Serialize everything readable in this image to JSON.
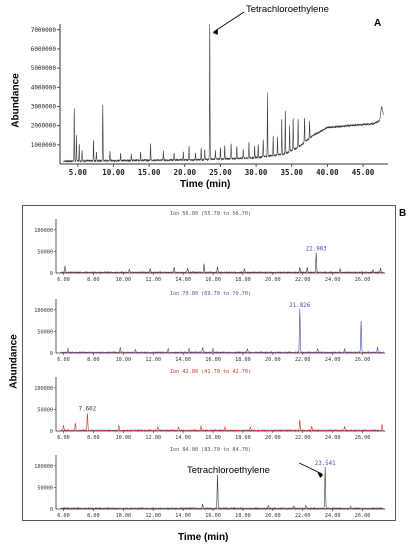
{
  "colors": {
    "axis": "#333333",
    "trace_black": "#3a3a3a",
    "trace_red": "#d32f2f",
    "trace_blue": "#4a4aa8",
    "ion_label_black": "#555555",
    "ion_label_blue": "#5050a0",
    "ion_label_red": "#c0392b",
    "peak_label_blue": "#4a4aa8",
    "peak_label_black": "#333333"
  },
  "chart_data": [
    {
      "id": "A",
      "type": "line",
      "panel_label": "A",
      "xlabel": "Time (min)",
      "ylabel": "Abundance",
      "xlim": [
        2.5,
        48.5
      ],
      "ylim": [
        0,
        7300000
      ],
      "x_ticks": [
        "5.00",
        "10.00",
        "15.00",
        "20.00",
        "25.00",
        "30.00",
        "35.00",
        "40.00",
        "45.00"
      ],
      "x_tick_values": [
        5,
        10,
        15,
        20,
        25,
        30,
        35,
        40,
        45
      ],
      "y_ticks": [
        "1000000",
        "2000000",
        "3000000",
        "4000000",
        "5000000",
        "6000000",
        "7000000"
      ],
      "y_tick_values": [
        1000000,
        2000000,
        3000000,
        4000000,
        5000000,
        6000000,
        7000000
      ],
      "annotation": {
        "text": "Tetrachloroethylene",
        "x": 23.5,
        "y": 7100000
      },
      "baseline": [
        [
          3.0,
          150000
        ],
        [
          22.0,
          220000
        ],
        [
          30.0,
          330000
        ],
        [
          34.0,
          520000
        ],
        [
          36.0,
          900000
        ],
        [
          38.0,
          1500000
        ],
        [
          40.0,
          1900000
        ],
        [
          44.0,
          2030000
        ],
        [
          46.5,
          2100000
        ],
        [
          47.3,
          2250000
        ],
        [
          47.6,
          3000000
        ],
        [
          47.9,
          2500000
        ]
      ],
      "peaks": [
        [
          4.5,
          2700000
        ],
        [
          4.8,
          1400000
        ],
        [
          5.2,
          900000
        ],
        [
          5.6,
          600000
        ],
        [
          7.2,
          1100000
        ],
        [
          7.6,
          500000
        ],
        [
          8.5,
          2900000
        ],
        [
          9.5,
          500000
        ],
        [
          11.0,
          400000
        ],
        [
          12.5,
          350000
        ],
        [
          13.8,
          450000
        ],
        [
          15.2,
          900000
        ],
        [
          17.0,
          500000
        ],
        [
          18.5,
          400000
        ],
        [
          19.8,
          450000
        ],
        [
          20.6,
          700000
        ],
        [
          21.5,
          350000
        ],
        [
          22.3,
          600000
        ],
        [
          22.8,
          500000
        ],
        [
          23.5,
          7100000
        ],
        [
          24.3,
          500000
        ],
        [
          25.0,
          600000
        ],
        [
          25.6,
          700000
        ],
        [
          26.5,
          800000
        ],
        [
          27.3,
          650000
        ],
        [
          28.2,
          500000
        ],
        [
          29.0,
          850000
        ],
        [
          29.8,
          600000
        ],
        [
          30.3,
          700000
        ],
        [
          31.0,
          900000
        ],
        [
          31.6,
          3300000
        ],
        [
          32.4,
          1000000
        ],
        [
          33.0,
          900000
        ],
        [
          33.6,
          1800000
        ],
        [
          34.1,
          2200000
        ],
        [
          34.7,
          1400000
        ],
        [
          35.2,
          1600000
        ],
        [
          35.9,
          1500000
        ],
        [
          36.8,
          1300000
        ],
        [
          37.5,
          900000
        ]
      ]
    },
    {
      "id": "B1",
      "type": "line",
      "panel_label": "B",
      "ion_label": "Ion 56.00 (55.70 to 56.70)",
      "xlim": [
        5.5,
        27.5
      ],
      "ylim": [
        0,
        125000
      ],
      "x_ticks": [
        "6.00",
        "8.00",
        "10.00",
        "12.00",
        "14.00",
        "16.00",
        "18.00",
        "20.00",
        "22.00",
        "24.00",
        "26.00"
      ],
      "x_tick_values": [
        6,
        8,
        10,
        12,
        14,
        16,
        18,
        20,
        22,
        24,
        26
      ],
      "y_ticks": [
        "50000",
        "100000"
      ],
      "y_tick_values": [
        50000,
        100000
      ],
      "trace_color": "black",
      "peak_label": {
        "text": "22.903",
        "x": 22.9,
        "color": "blue"
      },
      "peaks": [
        [
          6.1,
          15000
        ],
        [
          10.4,
          7000
        ],
        [
          11.8,
          9000
        ],
        [
          13.4,
          12000
        ],
        [
          14.3,
          9000
        ],
        [
          15.4,
          20000
        ],
        [
          16.3,
          13000
        ],
        [
          18.1,
          8000
        ],
        [
          21.8,
          11000
        ],
        [
          22.3,
          11000
        ],
        [
          22.9,
          45000
        ],
        [
          24.5,
          8000
        ],
        [
          26.7,
          7000
        ],
        [
          27.2,
          10000
        ]
      ]
    },
    {
      "id": "B2",
      "type": "line",
      "ion_label": "Ion 70.00 (69.70 to 70.70)",
      "xlim": [
        5.5,
        27.5
      ],
      "ylim": [
        0,
        125000
      ],
      "x_ticks": [
        "6.00",
        "8.00",
        "10.00",
        "12.00",
        "14.00",
        "16.00",
        "18.00",
        "20.00",
        "22.00",
        "24.00",
        "26.00"
      ],
      "x_tick_values": [
        6,
        8,
        10,
        12,
        14,
        16,
        18,
        20,
        22,
        24,
        26
      ],
      "y_ticks": [
        "50000",
        "100000"
      ],
      "y_tick_values": [
        50000,
        100000
      ],
      "trace_color": "blue",
      "peak_label": {
        "text": "21.826",
        "x": 21.8,
        "color": "blue"
      },
      "peaks": [
        [
          6.3,
          9000
        ],
        [
          9.8,
          11000
        ],
        [
          10.8,
          7000
        ],
        [
          13.0,
          8000
        ],
        [
          14.4,
          9000
        ],
        [
          15.3,
          12000
        ],
        [
          16.0,
          9000
        ],
        [
          18.3,
          8000
        ],
        [
          21.8,
          100000
        ],
        [
          23.0,
          9000
        ],
        [
          24.8,
          8000
        ],
        [
          25.9,
          72000
        ],
        [
          27.0,
          12000
        ]
      ]
    },
    {
      "id": "B3",
      "type": "line",
      "ion_label": "Ion 42.00 (41.70 to 42.70)",
      "xlim": [
        5.5,
        27.5
      ],
      "ylim": [
        0,
        125000
      ],
      "x_ticks": [
        "6.00",
        "8.00",
        "10.00",
        "12.00",
        "14.00",
        "16.00",
        "18.00",
        "20.00",
        "22.00",
        "24.00",
        "26.00"
      ],
      "x_tick_values": [
        6,
        8,
        10,
        12,
        14,
        16,
        18,
        20,
        22,
        24,
        26
      ],
      "y_ticks": [
        "50000",
        "100000"
      ],
      "y_tick_values": [
        50000,
        100000
      ],
      "trace_color": "red",
      "peak_label": {
        "text": "7.602",
        "x": 7.6,
        "color": "black"
      },
      "peaks": [
        [
          6.0,
          12000
        ],
        [
          6.8,
          18000
        ],
        [
          7.6,
          40000
        ],
        [
          9.7,
          12000
        ],
        [
          12.3,
          9000
        ],
        [
          13.7,
          8000
        ],
        [
          15.2,
          10000
        ],
        [
          16.8,
          8000
        ],
        [
          18.5,
          7000
        ],
        [
          21.8,
          25000
        ],
        [
          22.6,
          9000
        ],
        [
          24.8,
          9000
        ],
        [
          27.3,
          15000
        ]
      ]
    },
    {
      "id": "B4",
      "type": "line",
      "ion_label": "Ion 84.00 (83.70 to 84.70)",
      "xlim": [
        5.5,
        27.5
      ],
      "ylim": [
        0,
        125000
      ],
      "x_ticks": [
        "6.00",
        "8.00",
        "10.00",
        "12.00",
        "14.00",
        "16.00",
        "18.00",
        "20.00",
        "22.00",
        "24.00",
        "26.00"
      ],
      "x_tick_values": [
        6,
        8,
        10,
        12,
        14,
        16,
        18,
        20,
        22,
        24,
        26
      ],
      "y_ticks": [
        "50000",
        "100000"
      ],
      "y_tick_values": [
        50000,
        100000
      ],
      "trace_color": "black",
      "peak_label": {
        "text": "23.541",
        "x": 23.5,
        "color": "blue"
      },
      "annotation": {
        "text": "Tetrachloroethylene",
        "x": 23.5,
        "y": 95000
      },
      "peaks": [
        [
          15.3,
          10000
        ],
        [
          16.3,
          78000
        ],
        [
          19.7,
          6000
        ],
        [
          21.4,
          6000
        ],
        [
          22.2,
          6000
        ],
        [
          23.5,
          95000
        ],
        [
          25.2,
          5000
        ]
      ]
    }
  ],
  "labels": {
    "shared_ylabel_B": "Abundance",
    "shared_xlabel_B": "Time (min)"
  }
}
